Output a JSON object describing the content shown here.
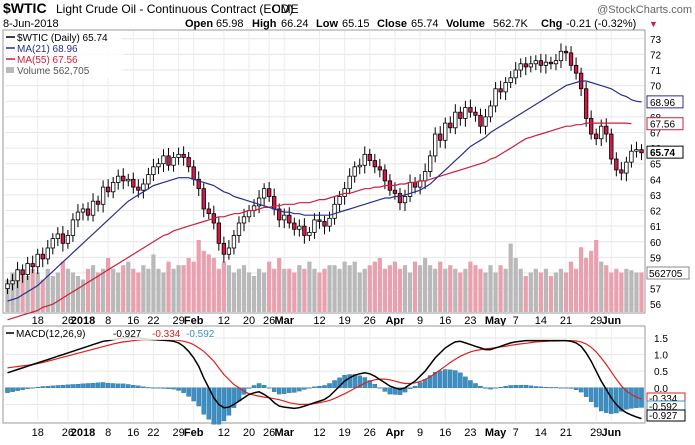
{
  "header": {
    "symbol": "$WTIC",
    "title": "Light Crude Oil - Continuous Contract (EOD)",
    "exchange": "CME",
    "watermark": "@StockCharts.com",
    "date": "8-Jun-2018",
    "open_label": "Open",
    "open": "65.98",
    "high_label": "High",
    "high": "66.24",
    "low_label": "Low",
    "low": "65.15",
    "close_label": "Close",
    "close": "65.74",
    "volume_label": "Volume",
    "volume": "562.7K",
    "chg_label": "Chg",
    "chg": "-0.21 (-0.32%)",
    "chg_marker": "▼"
  },
  "legend": {
    "price": "$WTIC (Daily) 65.74",
    "ma21": "MA(21) 68.96",
    "ma55": "MA(55) 67.56",
    "volume": "Volume 562,705"
  },
  "macd_legend": {
    "label": "MACD(12,26,9)",
    "macd": "-0.927",
    "signal": "-0.334",
    "hist": "-0.592"
  },
  "colors": {
    "up": "#ffffff",
    "down": "#d11a4a",
    "candle_outline": "#000000",
    "ma21": "#2b2f8c",
    "ma55": "#cc1f3d",
    "vol_up": "#b9b9b9",
    "vol_down": "#e9a1b0",
    "macd": "#000000",
    "signal": "#e0201b",
    "hist": "#3c8fc3"
  },
  "price_axis": {
    "ticks": [
      "56",
      "57",
      "58",
      "59",
      "60",
      "61",
      "62",
      "63",
      "64",
      "65",
      "66",
      "67",
      "68",
      "69",
      "70",
      "71",
      "72",
      "73"
    ],
    "tags": [
      {
        "value": "68.96",
        "kind": "ma21"
      },
      {
        "value": "67.56",
        "kind": "ma55"
      },
      {
        "value": "65.74",
        "kind": "close"
      }
    ],
    "volume_tag": "562705"
  },
  "macd_axis": {
    "ticks": [
      "1.5",
      "1.0",
      "0.5",
      "0.0",
      "-0.5"
    ],
    "tags": [
      {
        "value": "-0.334",
        "kind": "signal"
      },
      {
        "value": "-0.592",
        "kind": "hist"
      },
      {
        "value": "-0.927",
        "kind": "macd"
      }
    ]
  },
  "x_axis": {
    "labels": [
      {
        "text": "18",
        "idx": 6,
        "bold": false
      },
      {
        "text": "26",
        "idx": 12,
        "bold": false
      },
      {
        "text": "2018",
        "idx": 15,
        "bold": true
      },
      {
        "text": "8",
        "idx": 20,
        "bold": false
      },
      {
        "text": "16",
        "idx": 25,
        "bold": false
      },
      {
        "text": "22",
        "idx": 29,
        "bold": false
      },
      {
        "text": "29",
        "idx": 34,
        "bold": false
      },
      {
        "text": "Feb",
        "idx": 37,
        "bold": true
      },
      {
        "text": "12",
        "idx": 43,
        "bold": false
      },
      {
        "text": "20",
        "idx": 48,
        "bold": false
      },
      {
        "text": "26",
        "idx": 52,
        "bold": false
      },
      {
        "text": "Mar",
        "idx": 55,
        "bold": true
      },
      {
        "text": "12",
        "idx": 62,
        "bold": false
      },
      {
        "text": "19",
        "idx": 67,
        "bold": false
      },
      {
        "text": "26",
        "idx": 72,
        "bold": false
      },
      {
        "text": "Apr",
        "idx": 77,
        "bold": true
      },
      {
        "text": "9",
        "idx": 82,
        "bold": false
      },
      {
        "text": "16",
        "idx": 87,
        "bold": false
      },
      {
        "text": "23",
        "idx": 92,
        "bold": false
      },
      {
        "text": "May",
        "idx": 97,
        "bold": true
      },
      {
        "text": "7",
        "idx": 101,
        "bold": false
      },
      {
        "text": "14",
        "idx": 106,
        "bold": false
      },
      {
        "text": "21",
        "idx": 111,
        "bold": false
      },
      {
        "text": "29",
        "idx": 117,
        "bold": false
      },
      {
        "text": "Jun",
        "idx": 120,
        "bold": true
      }
    ]
  },
  "chart_data": {
    "type": "candlestick",
    "price_ylim": [
      55.5,
      73.5
    ],
    "close": [
      57.3,
      57.5,
      58.2,
      57.9,
      58.6,
      58.4,
      59.2,
      58.9,
      59.6,
      60.2,
      60.5,
      59.9,
      60.4,
      61.4,
      61.9,
      62.1,
      61.7,
      62.6,
      62.4,
      63.5,
      63.2,
      63.8,
      64.2,
      63.9,
      64.0,
      63.5,
      63.3,
      63.7,
      64.3,
      64.8,
      65.0,
      65.5,
      64.9,
      65.4,
      65.6,
      65.4,
      64.8,
      64.0,
      63.4,
      62.1,
      61.8,
      61.2,
      59.9,
      59.2,
      59.6,
      60.4,
      61.2,
      61.6,
      62.0,
      62.3,
      62.8,
      63.4,
      62.9,
      62.1,
      61.4,
      61.7,
      61.2,
      60.8,
      61.0,
      60.4,
      60.6,
      61.4,
      61.3,
      61.0,
      61.5,
      62.4,
      62.9,
      63.4,
      64.2,
      64.8,
      64.9,
      65.6,
      65.2,
      64.8,
      64.6,
      63.9,
      63.3,
      63.1,
      62.5,
      62.9,
      63.8,
      63.5,
      63.9,
      64.5,
      65.5,
      66.9,
      66.5,
      67.6,
      67.3,
      68.3,
      67.9,
      68.6,
      68.3,
      68.1,
      67.4,
      68.0,
      68.7,
      69.8,
      69.6,
      70.2,
      70.5,
      71.0,
      71.4,
      71.2,
      71.4,
      71.6,
      71.3,
      71.5,
      71.4,
      71.6,
      72.2,
      72.1,
      71.3,
      70.8,
      69.8,
      67.9,
      66.9,
      66.6,
      67.4,
      66.9,
      65.3,
      64.6,
      64.4,
      65.1,
      65.8,
      65.9,
      65.7
    ],
    "ma21": [
      56.2,
      56.3,
      56.4,
      56.6,
      56.8,
      57.0,
      57.2,
      57.5,
      57.8,
      58.1,
      58.4,
      58.7,
      59.0,
      59.3,
      59.6,
      59.9,
      60.2,
      60.5,
      60.8,
      61.1,
      61.4,
      61.7,
      62.0,
      62.3,
      62.6,
      62.8,
      63.0,
      63.2,
      63.4,
      63.6,
      63.7,
      63.8,
      63.9,
      64.0,
      64.1,
      64.1,
      64.1,
      64.0,
      63.9,
      63.8,
      63.7,
      63.6,
      63.4,
      63.2,
      63.1,
      62.9,
      62.8,
      62.7,
      62.6,
      62.5,
      62.4,
      62.3,
      62.2,
      62.1,
      62.0,
      61.9,
      61.9,
      61.8,
      61.8,
      61.7,
      61.7,
      61.7,
      61.7,
      61.7,
      61.7,
      61.8,
      61.9,
      62.0,
      62.1,
      62.2,
      62.3,
      62.4,
      62.5,
      62.6,
      62.7,
      62.8,
      62.8,
      62.9,
      62.9,
      63.0,
      63.1,
      63.2,
      63.3,
      63.5,
      63.7,
      64.0,
      64.3,
      64.6,
      64.9,
      65.2,
      65.5,
      65.8,
      66.1,
      66.3,
      66.5,
      66.7,
      67.0,
      67.2,
      67.4,
      67.6,
      67.8,
      68.0,
      68.2,
      68.4,
      68.6,
      68.8,
      69.0,
      69.2,
      69.4,
      69.6,
      69.8,
      70.0,
      70.1,
      70.2,
      70.3,
      70.3,
      70.2,
      70.1,
      70.0,
      69.9,
      69.8,
      69.6,
      69.4,
      69.3,
      69.1,
      69.0,
      68.96
    ],
    "ma55": [
      55.0,
      55.1,
      55.2,
      55.3,
      55.4,
      55.5,
      55.6,
      55.8,
      55.9,
      56.0,
      56.2,
      56.4,
      56.6,
      56.8,
      57.0,
      57.2,
      57.4,
      57.6,
      57.8,
      58.0,
      58.2,
      58.4,
      58.6,
      58.8,
      59.0,
      59.2,
      59.4,
      59.6,
      59.8,
      60.0,
      60.2,
      60.4,
      60.5,
      60.7,
      60.8,
      60.9,
      61.0,
      61.1,
      61.2,
      61.3,
      61.4,
      61.5,
      61.6,
      61.6,
      61.7,
      61.8,
      61.8,
      61.9,
      62.0,
      62.0,
      62.1,
      62.2,
      62.2,
      62.3,
      62.3,
      62.4,
      62.4,
      62.4,
      62.5,
      62.5,
      62.5,
      62.6,
      62.7,
      62.7,
      62.8,
      62.9,
      63.0,
      63.1,
      63.1,
      63.2,
      63.3,
      63.4,
      63.4,
      63.5,
      63.5,
      63.6,
      63.6,
      63.6,
      63.7,
      63.7,
      63.8,
      63.8,
      63.9,
      63.9,
      64.0,
      64.1,
      64.2,
      64.3,
      64.4,
      64.5,
      64.6,
      64.7,
      64.8,
      64.9,
      65.0,
      65.1,
      65.3,
      65.4,
      65.6,
      65.8,
      66.0,
      66.2,
      66.4,
      66.6,
      66.7,
      66.8,
      66.9,
      67.0,
      67.1,
      67.2,
      67.3,
      67.4,
      67.4,
      67.5,
      67.5,
      67.6,
      67.6,
      67.6,
      67.6,
      67.6,
      67.6,
      67.6,
      67.6,
      67.6,
      67.56
    ],
    "volume_rel": [
      0.45,
      0.55,
      0.6,
      0.55,
      0.5,
      0.6,
      0.55,
      0.45,
      0.6,
      0.5,
      0.55,
      0.7,
      0.6,
      0.55,
      0.5,
      0.45,
      0.6,
      0.65,
      0.55,
      0.6,
      0.75,
      0.6,
      0.55,
      0.65,
      0.7,
      0.6,
      0.55,
      0.65,
      0.6,
      0.8,
      0.6,
      0.55,
      0.7,
      0.6,
      0.65,
      0.65,
      0.75,
      0.7,
      1.0,
      0.85,
      0.8,
      0.75,
      0.6,
      0.7,
      0.65,
      0.55,
      0.6,
      0.65,
      0.55,
      0.5,
      0.6,
      0.55,
      0.7,
      0.6,
      0.75,
      0.6,
      0.6,
      0.55,
      0.65,
      0.6,
      0.7,
      0.6,
      0.55,
      0.6,
      0.65,
      0.65,
      0.6,
      0.7,
      0.65,
      0.7,
      0.55,
      0.6,
      0.65,
      0.7,
      0.75,
      0.6,
      0.65,
      0.7,
      0.6,
      0.65,
      0.55,
      0.7,
      0.65,
      0.75,
      0.65,
      0.6,
      0.7,
      0.6,
      0.65,
      0.6,
      0.55,
      0.6,
      0.7,
      0.65,
      0.6,
      0.55,
      0.65,
      0.55,
      0.65,
      0.6,
      0.95,
      0.75,
      0.6,
      0.5,
      0.55,
      0.6,
      0.55,
      0.6,
      0.5,
      0.55,
      0.6,
      0.55,
      0.7,
      0.6,
      0.9,
      0.75,
      0.85,
      1.0,
      0.7,
      0.65,
      0.55,
      0.6,
      0.55,
      0.6,
      0.58,
      0.55,
      0.55
    ],
    "macd": [
      0.45,
      0.5,
      0.55,
      0.6,
      0.65,
      0.7,
      0.75,
      0.8,
      0.85,
      0.9,
      0.95,
      1.0,
      1.05,
      1.1,
      1.15,
      1.2,
      1.25,
      1.3,
      1.35,
      1.4,
      1.42,
      1.45,
      1.47,
      1.5,
      1.5,
      1.5,
      1.5,
      1.48,
      1.46,
      1.45,
      1.44,
      1.43,
      1.42,
      1.4,
      1.35,
      1.25,
      1.1,
      0.9,
      0.65,
      0.3,
      0.0,
      -0.3,
      -0.5,
      -0.6,
      -0.58,
      -0.5,
      -0.4,
      -0.3,
      -0.2,
      -0.15,
      -0.12,
      -0.2,
      -0.3,
      -0.45,
      -0.55,
      -0.58,
      -0.6,
      -0.62,
      -0.6,
      -0.55,
      -0.5,
      -0.45,
      -0.4,
      -0.35,
      -0.25,
      -0.1,
      0.05,
      0.2,
      0.3,
      0.38,
      0.42,
      0.45,
      0.42,
      0.35,
      0.25,
      0.15,
      0.05,
      0.0,
      -0.05,
      0.0,
      0.1,
      0.2,
      0.35,
      0.5,
      0.7,
      0.9,
      1.05,
      1.2,
      1.3,
      1.38,
      1.4,
      1.35,
      1.3,
      1.25,
      1.2,
      1.15,
      1.15,
      1.2,
      1.25,
      1.3,
      1.35,
      1.38,
      1.4,
      1.42,
      1.42,
      1.42,
      1.42,
      1.42,
      1.42,
      1.42,
      1.42,
      1.42,
      1.4,
      1.35,
      1.25,
      1.05,
      0.8,
      0.5,
      0.2,
      -0.05,
      -0.3,
      -0.5,
      -0.65,
      -0.75,
      -0.82,
      -0.88,
      -0.927
    ],
    "signal": [
      0.6,
      0.62,
      0.64,
      0.66,
      0.68,
      0.7,
      0.73,
      0.76,
      0.8,
      0.84,
      0.88,
      0.92,
      0.96,
      1.0,
      1.04,
      1.08,
      1.12,
      1.16,
      1.2,
      1.24,
      1.28,
      1.32,
      1.35,
      1.38,
      1.4,
      1.42,
      1.44,
      1.45,
      1.45,
      1.45,
      1.45,
      1.45,
      1.45,
      1.44,
      1.43,
      1.4,
      1.36,
      1.3,
      1.2,
      1.1,
      0.95,
      0.8,
      0.6,
      0.4,
      0.25,
      0.1,
      0.0,
      -0.1,
      -0.18,
      -0.22,
      -0.25,
      -0.28,
      -0.3,
      -0.33,
      -0.36,
      -0.4,
      -0.45,
      -0.48,
      -0.5,
      -0.5,
      -0.5,
      -0.48,
      -0.45,
      -0.42,
      -0.38,
      -0.32,
      -0.25,
      -0.18,
      -0.1,
      -0.02,
      0.06,
      0.14,
      0.2,
      0.24,
      0.26,
      0.26,
      0.24,
      0.2,
      0.16,
      0.13,
      0.13,
      0.15,
      0.19,
      0.25,
      0.33,
      0.43,
      0.54,
      0.65,
      0.76,
      0.86,
      0.95,
      1.02,
      1.08,
      1.12,
      1.15,
      1.17,
      1.19,
      1.21,
      1.23,
      1.25,
      1.28,
      1.3,
      1.32,
      1.34,
      1.36,
      1.38,
      1.39,
      1.4,
      1.41,
      1.41,
      1.42,
      1.42,
      1.42,
      1.41,
      1.38,
      1.32,
      1.22,
      1.08,
      0.9,
      0.7,
      0.48,
      0.26,
      0.06,
      -0.1,
      -0.2,
      -0.28,
      -0.334
    ],
    "macd_ylim": [
      -1.0,
      1.8
    ]
  }
}
